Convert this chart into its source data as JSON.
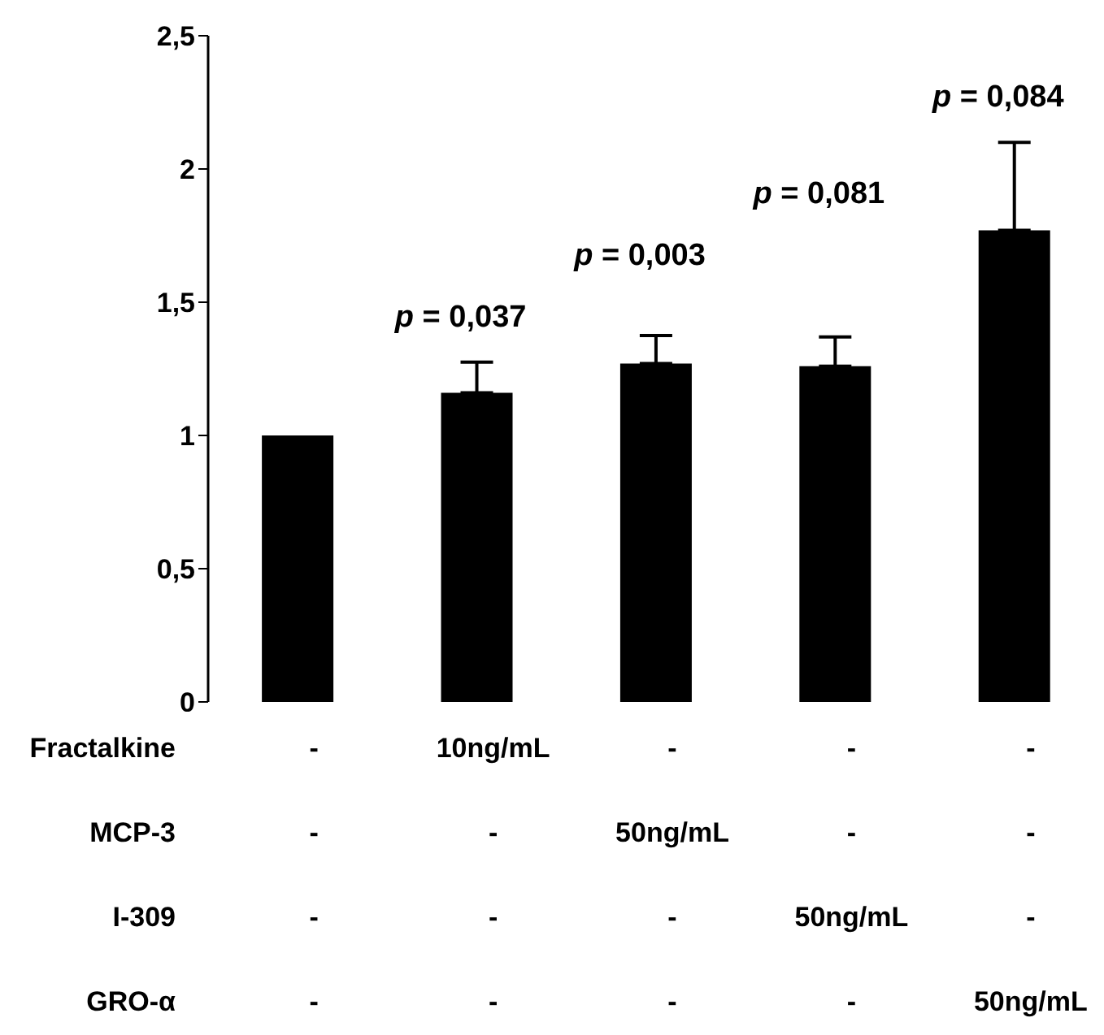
{
  "chart_data": {
    "type": "bar",
    "categories": [
      null,
      null,
      null,
      null,
      null
    ],
    "values": [
      1.0,
      1.16,
      1.27,
      1.26,
      1.77
    ],
    "color": "#000000",
    "errors": [
      null,
      [
        1.16,
        1.275
      ],
      [
        1.27,
        1.375
      ],
      [
        1.26,
        1.37
      ],
      [
        1.77,
        2.1
      ]
    ],
    "ylim": [
      0,
      2.5
    ],
    "yticks": [
      0,
      {
        "value": 0.5,
        "label": "0,5"
      },
      1,
      {
        "value": 1.5,
        "label": "1,5"
      },
      2,
      {
        "value": 2.5,
        "label": "2,5"
      }
    ],
    "grid": false,
    "legend": false,
    "annotations": [
      "p = 0,037",
      "p = 0,003",
      "p = 0,081",
      "p = 0,084",
      "Fractalkine",
      "-",
      "10ng/mL",
      "-",
      "-",
      "-",
      "MCP-3",
      "-",
      "-",
      "50ng/mL",
      "-",
      "-",
      "I-309",
      "-",
      "-",
      "-",
      "50ng/mL",
      "-",
      "GRO-α",
      "-",
      "-",
      "-",
      "-",
      "50ng/mL"
    ]
  }
}
